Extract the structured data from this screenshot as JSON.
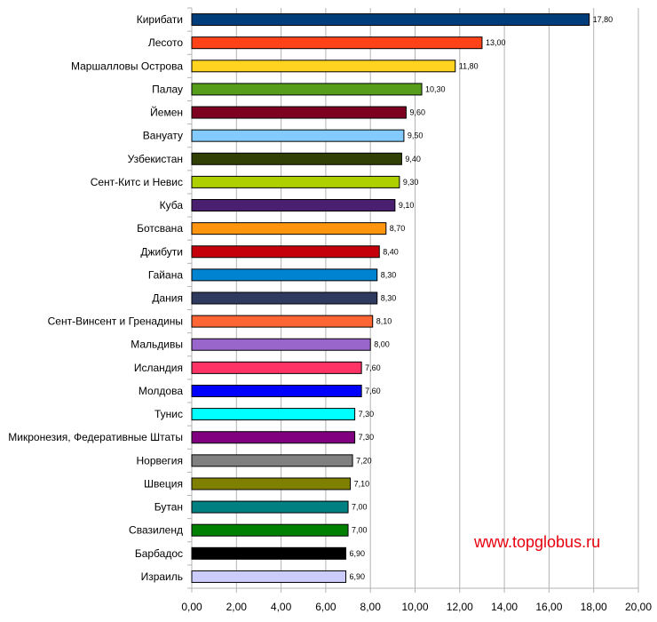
{
  "watermark": "www.topglobus.ru",
  "chart_data": {
    "type": "bar",
    "orientation": "horizontal",
    "categories": [
      "Кирибати",
      "Лесото",
      "Маршалловы Острова",
      "Палау",
      "Йемен",
      "Вануату",
      "Узбекистан",
      "Сент-Китс и Невис",
      "Куба",
      "Ботсвана",
      "Джибути",
      "Гайана",
      "Дания",
      "Сент-Винсент и Гренадины",
      "Мальдивы",
      "Исландия",
      "Молдова",
      "Тунис",
      "Микронезия, Федеративные Штаты",
      "Норвегия",
      "Швеция",
      "Бутан",
      "Свазиленд",
      "Барбадос",
      "Израиль"
    ],
    "values": [
      17.8,
      13.0,
      11.8,
      10.3,
      9.6,
      9.5,
      9.4,
      9.3,
      9.1,
      8.7,
      8.4,
      8.3,
      8.3,
      8.1,
      8.0,
      7.6,
      7.6,
      7.3,
      7.3,
      7.2,
      7.1,
      7.0,
      7.0,
      6.9,
      6.9
    ],
    "value_labels": [
      "17,80",
      "13,00",
      "11,80",
      "10,30",
      "9,60",
      "9,50",
      "9,40",
      "9,30",
      "9,10",
      "8,70",
      "8,40",
      "8,30",
      "8,30",
      "8,10",
      "8,00",
      "7,60",
      "7,60",
      "7,30",
      "7,30",
      "7,20",
      "7,10",
      "7,00",
      "7,00",
      "6,90",
      "6,90"
    ],
    "colors": [
      "#003d7a",
      "#ff4218",
      "#ffd320",
      "#579d1c",
      "#7e0021",
      "#83caff",
      "#314004",
      "#aecf00",
      "#4b1f6f",
      "#ff950e",
      "#c5000b",
      "#0084d1",
      "#2e3b5e",
      "#ff6633",
      "#9966cc",
      "#ff3366",
      "#0000ff",
      "#00ffff",
      "#800080",
      "#808080",
      "#808000",
      "#008080",
      "#008000",
      "#000000",
      "#ccccff"
    ],
    "xlim": [
      0,
      20
    ],
    "x_ticks": [
      0,
      2,
      4,
      6,
      8,
      10,
      12,
      14,
      16,
      18,
      20
    ],
    "x_tick_labels": [
      "0,00",
      "2,00",
      "4,00",
      "6,00",
      "8,00",
      "10,00",
      "12,00",
      "14,00",
      "16,00",
      "18,00",
      "20,00"
    ],
    "grid": "vertical",
    "title": "",
    "xlabel": "",
    "ylabel": ""
  }
}
